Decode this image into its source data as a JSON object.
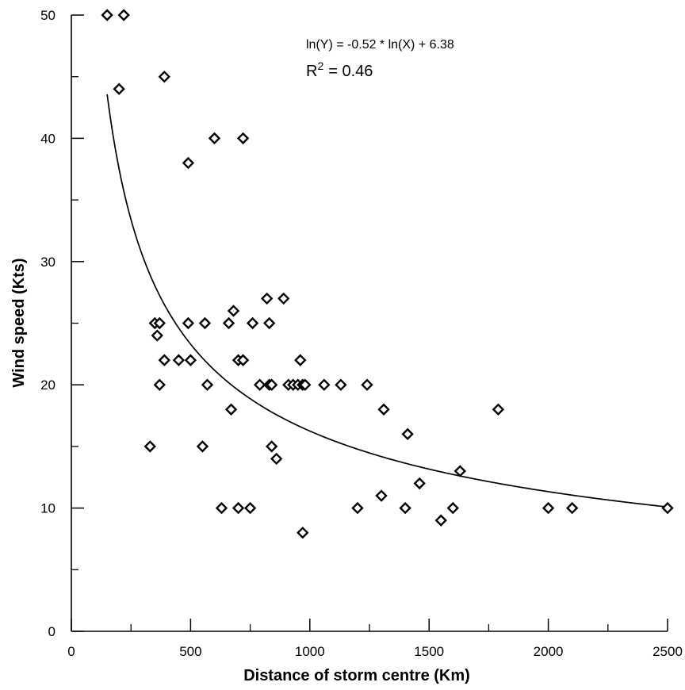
{
  "chart_data": {
    "type": "scatter",
    "title": "",
    "xlabel": "Distance of storm centre (Km)",
    "ylabel": "Wind speed (Kts)",
    "xlim": [
      0,
      2500
    ],
    "ylim": [
      0,
      50
    ],
    "x_ticks": [
      0,
      500,
      1000,
      1500,
      2000,
      2500
    ],
    "y_ticks": [
      0,
      10,
      20,
      30,
      40,
      50
    ],
    "grid": false,
    "marker": "diamond",
    "equation": "ln(Y) = -0.52 * ln(X) + 6.38",
    "r2_label": "R",
    "r2_sup": "2",
    "r2_value": "= 0.46",
    "fit": {
      "type": "power",
      "slope": -0.52,
      "intercept": 6.38,
      "x_range": [
        150,
        2500
      ]
    },
    "series": [
      {
        "points": [
          [
            150,
            50
          ],
          [
            220,
            50
          ],
          [
            200,
            44
          ],
          [
            390,
            45
          ],
          [
            490,
            38
          ],
          [
            600,
            40
          ],
          [
            720,
            40
          ],
          [
            350,
            25
          ],
          [
            370,
            25
          ],
          [
            360,
            24
          ],
          [
            490,
            25
          ],
          [
            560,
            25
          ],
          [
            660,
            25
          ],
          [
            680,
            26
          ],
          [
            760,
            25
          ],
          [
            830,
            25
          ],
          [
            820,
            27
          ],
          [
            890,
            27
          ],
          [
            390,
            22
          ],
          [
            450,
            22
          ],
          [
            500,
            22
          ],
          [
            700,
            22
          ],
          [
            720,
            22
          ],
          [
            960,
            22
          ],
          [
            370,
            20
          ],
          [
            570,
            20
          ],
          [
            790,
            20
          ],
          [
            830,
            20
          ],
          [
            840,
            20
          ],
          [
            910,
            20
          ],
          [
            930,
            20
          ],
          [
            950,
            20
          ],
          [
            970,
            20
          ],
          [
            980,
            20
          ],
          [
            1060,
            20
          ],
          [
            1130,
            20
          ],
          [
            1240,
            20
          ],
          [
            670,
            18
          ],
          [
            1310,
            18
          ],
          [
            1790,
            18
          ],
          [
            330,
            15
          ],
          [
            550,
            15
          ],
          [
            840,
            15
          ],
          [
            860,
            14
          ],
          [
            1410,
            16
          ],
          [
            1460,
            12
          ],
          [
            1630,
            13
          ],
          [
            630,
            10
          ],
          [
            700,
            10
          ],
          [
            750,
            10
          ],
          [
            1200,
            10
          ],
          [
            1300,
            11
          ],
          [
            1400,
            10
          ],
          [
            1600,
            10
          ],
          [
            1550,
            9
          ],
          [
            970,
            8
          ],
          [
            2000,
            10
          ],
          [
            2100,
            10
          ],
          [
            2500,
            10
          ]
        ]
      }
    ]
  }
}
